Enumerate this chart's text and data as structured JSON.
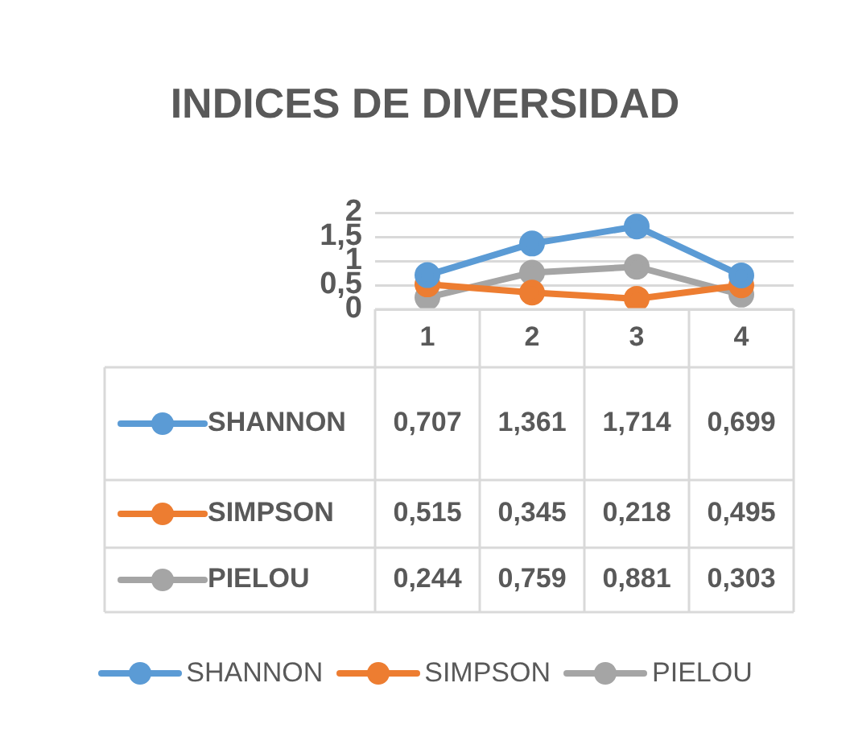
{
  "chart_data": {
    "type": "line",
    "title": "INDICES DE DIVERSIDAD",
    "categories": [
      "1",
      "2",
      "3",
      "4"
    ],
    "series": [
      {
        "name": "SHANNON",
        "color": "#5b9bd5",
        "values": [
          0.707,
          1.361,
          1.714,
          0.699
        ],
        "value_labels": [
          "0,707",
          "1,361",
          "1,714",
          "0,699"
        ]
      },
      {
        "name": "SIMPSON",
        "color": "#ed7d31",
        "values": [
          0.515,
          0.345,
          0.218,
          0.495
        ],
        "value_labels": [
          "0,515",
          "0,345",
          "0,218",
          "0,495"
        ]
      },
      {
        "name": "PIELOU",
        "color": "#a5a5a5",
        "values": [
          0.244,
          0.759,
          0.881,
          0.303
        ],
        "value_labels": [
          "0,244",
          "0,759",
          "0,881",
          "0,303"
        ]
      }
    ],
    "ylim": [
      0,
      2
    ],
    "yticks": [
      0,
      {
        "value": 0.5,
        "label": "0,5"
      },
      1,
      {
        "value": 1.5,
        "label": "1,5"
      },
      2
    ],
    "grid": "y",
    "legend": "bottom",
    "marker": "circle",
    "line_style": "solid"
  }
}
